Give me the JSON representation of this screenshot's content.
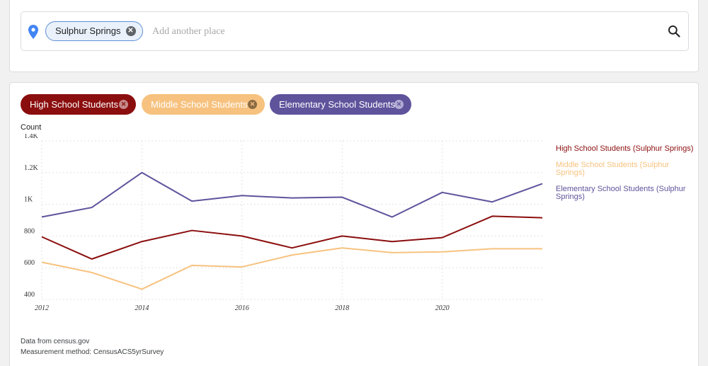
{
  "search": {
    "place_chip": "Sulphur Springs",
    "placeholder": "Add another place"
  },
  "chips": [
    {
      "label": "High School Students",
      "color": "#8b0e0e",
      "x_color": "#c48a8a"
    },
    {
      "label": "Middle School Students",
      "color": "#f7c27f",
      "x_color": "#8a6a45"
    },
    {
      "label": "Elementary School Students",
      "color": "#5f539c",
      "x_color": "#b2acd3"
    }
  ],
  "chart_data": {
    "type": "line",
    "ylabel": "Count",
    "ylim": [
      400,
      1400
    ],
    "y_ticks": [
      400,
      600,
      800,
      1000,
      1200,
      1400
    ],
    "y_tick_labels": [
      "400",
      "600",
      "800",
      "1K",
      "1.2K",
      "1.4K"
    ],
    "x_ticks": [
      2012,
      2014,
      2016,
      2018,
      2020
    ],
    "x": [
      2012,
      2013,
      2014,
      2015,
      2016,
      2017,
      2018,
      2019,
      2020,
      2021,
      2022
    ],
    "xlim": [
      2012,
      2022
    ],
    "grid": true,
    "legend_position": "right",
    "series": [
      {
        "name": "High School Students (Sulphur Springs)",
        "color": "#8b0e0e",
        "values": [
          795,
          655,
          765,
          835,
          800,
          725,
          800,
          765,
          790,
          925,
          915
        ]
      },
      {
        "name": "Middle School Students (Sulphur Springs)",
        "color": "#f7c27f",
        "values": [
          635,
          570,
          465,
          615,
          605,
          680,
          725,
          695,
          700,
          720,
          720
        ]
      },
      {
        "name": "Elementary School Students (Sulphur Springs)",
        "color": "#5f539c",
        "values": [
          920,
          980,
          1200,
          1020,
          1055,
          1040,
          1045,
          920,
          1075,
          1015,
          1130
        ]
      }
    ]
  },
  "footer": {
    "source": "Data from census.gov",
    "method": "Measurement method: CensusACS5yrSurvey"
  }
}
